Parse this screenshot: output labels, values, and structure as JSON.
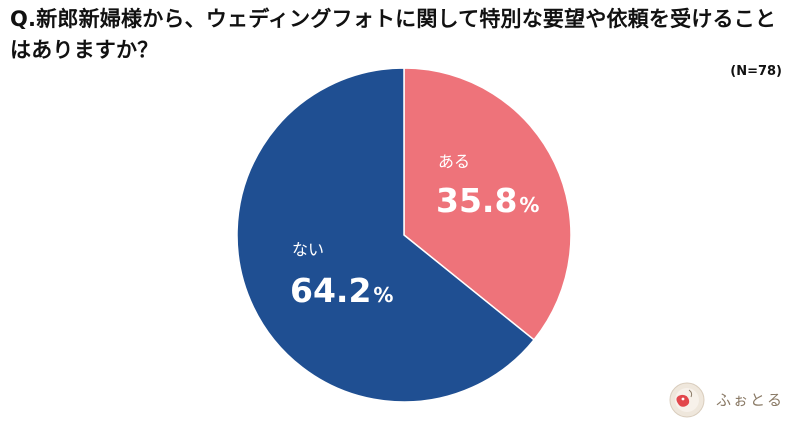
{
  "title": "Q.新郎新婦様から、ウェディングフォトに関して特別な要望や依頼を受けることはありますか？",
  "sample_size": "(N=78)",
  "logo_text": "ふぉとる",
  "chart_data": {
    "type": "pie",
    "title": "Q.新郎新婦様から、ウェディングフォトに関して特別な要望や依頼を受けることはありますか？",
    "n_label": "(N=78)",
    "start": "top",
    "direction": "clockwise",
    "slices": [
      {
        "label": "ある",
        "value": 35.8,
        "display": "35.8",
        "unit": "%",
        "color": "#ee737a"
      },
      {
        "label": "ない",
        "value": 64.2,
        "display": "64.2",
        "unit": "%",
        "color": "#1f4f92"
      }
    ]
  }
}
